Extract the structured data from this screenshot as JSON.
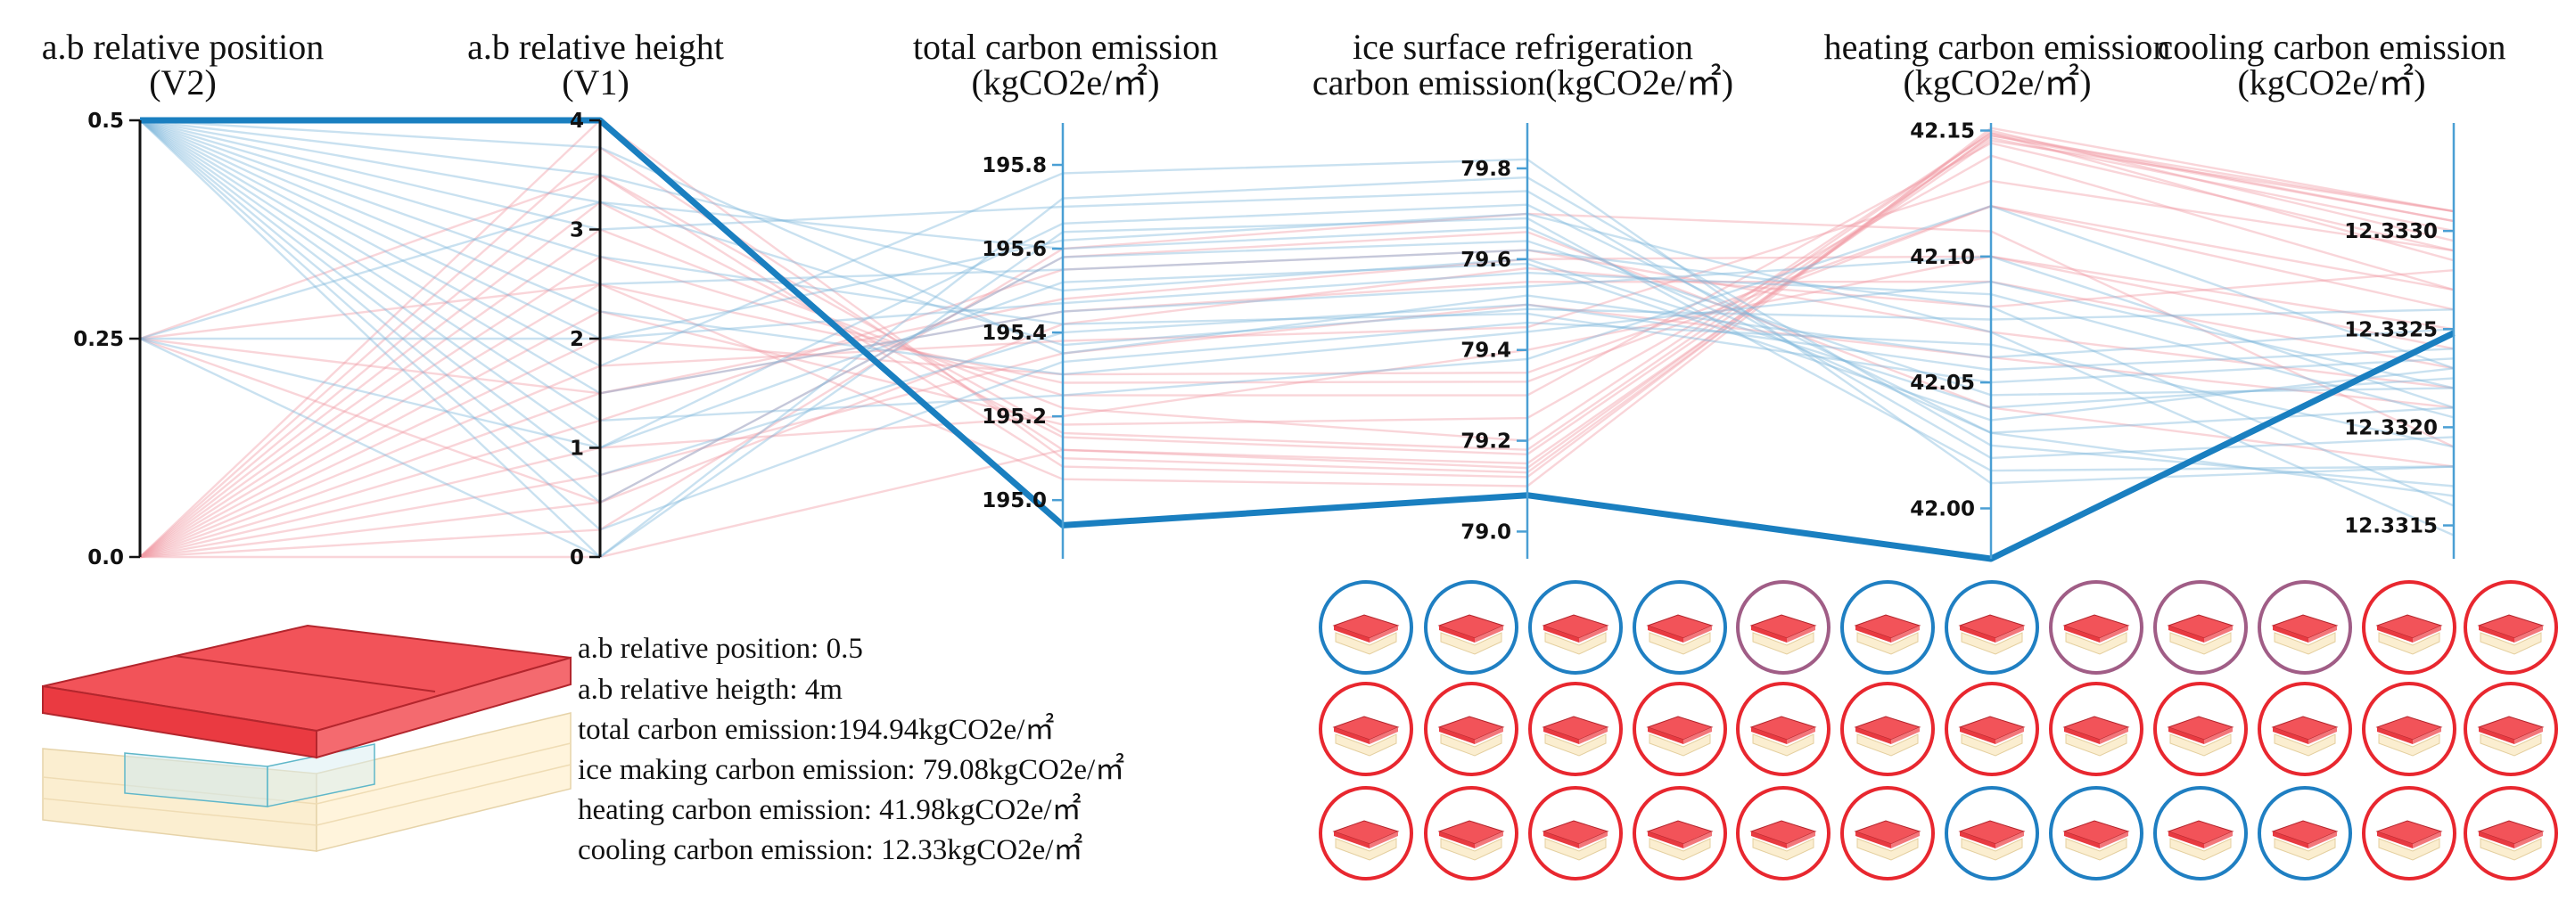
{
  "chart_data": {
    "type": "parallel_coordinates",
    "axes": [
      {
        "id": "v2",
        "title": [
          "a.b relative position",
          "(V2)"
        ],
        "range": [
          0,
          0.5
        ],
        "ticks": [
          "0.5",
          "0.25",
          "0.0"
        ],
        "tick_values": [
          0.5,
          0.25,
          0
        ]
      },
      {
        "id": "v1",
        "title": [
          "a.b relative height",
          "(V1)"
        ],
        "range": [
          0,
          4
        ],
        "ticks": [
          "4",
          "3",
          "2",
          "1",
          "0"
        ],
        "tick_values": [
          4,
          3,
          2,
          1,
          0
        ]
      },
      {
        "id": "total",
        "title": [
          "total carbon emission",
          "(kgCO2e/㎡)"
        ],
        "range": [
          194.86,
          195.9
        ],
        "ticks": [
          "195.8",
          "195.6",
          "195.4",
          "195.2",
          "195.0"
        ],
        "tick_values": [
          195.8,
          195.6,
          195.4,
          195.2,
          195.0
        ]
      },
      {
        "id": "ice",
        "title": [
          "ice surface refrigeration",
          "carbon emission(kgCO2e/㎡)"
        ],
        "range": [
          78.94,
          79.9
        ],
        "ticks": [
          "79.8",
          "79.6",
          "79.4",
          "79.2",
          "79.0"
        ],
        "tick_values": [
          79.8,
          79.6,
          79.4,
          79.2,
          79.0
        ]
      },
      {
        "id": "heating",
        "title": [
          "heating carbon emission",
          "(kgCO2e/㎡)"
        ],
        "range": [
          41.98,
          42.153
        ],
        "ticks": [
          "42.15",
          "42.10",
          "42.05",
          "42.00"
        ],
        "tick_values": [
          42.15,
          42.1,
          42.05,
          42.0
        ]
      },
      {
        "id": "cooling",
        "title": [
          "cooling carbon emission",
          "(kgCO2e/㎡)"
        ],
        "range": [
          12.33133,
          12.33355
        ],
        "ticks": [
          "12.3330",
          "12.3325",
          "12.3320",
          "12.3315"
        ],
        "tick_values": [
          12.333,
          12.3325,
          12.332,
          12.3315
        ]
      }
    ],
    "highlighted": {
      "v2": 0.5,
      "v1": 4,
      "total": 194.94,
      "ice": 79.08,
      "heating": 41.98,
      "cooling": 12.33248
    },
    "series": [
      {
        "name": "pink",
        "color": "#f19aa5",
        "values": [
          [
            0,
            4,
            195.1,
            79.13,
            42.148,
            12.33305
          ],
          [
            0,
            3.75,
            195.12,
            79.15,
            42.146,
            12.3331
          ],
          [
            0,
            3.5,
            195.08,
            79.12,
            42.15,
            12.33295
          ],
          [
            0,
            3.25,
            195.15,
            79.17,
            42.147,
            12.333
          ],
          [
            0,
            3,
            195.22,
            79.2,
            42.149,
            12.33285
          ],
          [
            0,
            2.75,
            195.25,
            79.3,
            42.145,
            12.3329
          ],
          [
            0,
            2.5,
            195.05,
            79.1,
            42.151,
            12.3331
          ],
          [
            0,
            2.25,
            195.18,
            79.25,
            42.14,
            12.3327
          ],
          [
            0,
            2,
            195.3,
            79.35,
            42.12,
            12.3326
          ],
          [
            0,
            1.75,
            195.38,
            79.45,
            42.13,
            12.3329
          ],
          [
            0,
            1.5,
            195.45,
            79.55,
            42.09,
            12.3323
          ],
          [
            0,
            1.25,
            195.55,
            79.62,
            42.07,
            12.3322
          ],
          [
            0,
            1,
            195.2,
            79.4,
            42.1,
            12.3324
          ],
          [
            0,
            0.75,
            195.35,
            79.5,
            42.06,
            12.3321
          ],
          [
            0,
            0.5,
            195.42,
            79.58,
            42.08,
            12.3328
          ],
          [
            0,
            0.25,
            195.6,
            79.7,
            42.11,
            12.3319
          ],
          [
            0,
            0,
            195.12,
            79.14,
            42.148,
            12.3331
          ],
          [
            0.25,
            3.5,
            195.16,
            79.18,
            42.149,
            12.33305
          ],
          [
            0.25,
            2.5,
            195.28,
            79.33,
            42.12,
            12.3327
          ],
          [
            0.25,
            1.5,
            195.48,
            79.6,
            42.1,
            12.3325
          ],
          [
            0.25,
            0.5,
            195.58,
            79.66,
            42.04,
            12.3318
          ]
        ]
      },
      {
        "name": "blue",
        "color": "#7fb8dc",
        "values": [
          [
            0.5,
            3.75,
            195.35,
            79.52,
            42.06,
            12.3325
          ],
          [
            0.5,
            3.5,
            195.5,
            79.6,
            42.04,
            12.33225
          ],
          [
            0.5,
            3.25,
            195.6,
            79.67,
            42.03,
            12.3321
          ],
          [
            0.5,
            3,
            195.7,
            79.75,
            42.02,
            12.33195
          ],
          [
            0.5,
            2.75,
            195.42,
            79.48,
            42.05,
            12.33235
          ],
          [
            0.5,
            2.5,
            195.55,
            79.62,
            42.08,
            12.3316
          ],
          [
            0.5,
            2.25,
            195.3,
            79.44,
            42.09,
            12.3322
          ],
          [
            0.5,
            2,
            195.62,
            79.7,
            42.07,
            12.33145
          ],
          [
            0.5,
            1.75,
            195.78,
            79.82,
            42.01,
            12.3318
          ],
          [
            0.5,
            1.5,
            195.45,
            79.54,
            42.1,
            12.3321
          ],
          [
            0.5,
            1.25,
            195.25,
            79.38,
            42.12,
            12.3323
          ],
          [
            0.5,
            1,
            195.66,
            79.72,
            42.03,
            12.33165
          ],
          [
            0.5,
            0.75,
            195.4,
            79.5,
            42.055,
            12.3324
          ],
          [
            0.5,
            0.5,
            195.58,
            79.64,
            42.045,
            12.3322
          ],
          [
            0.5,
            0.25,
            195.33,
            79.46,
            42.065,
            12.3319
          ],
          [
            0.5,
            0,
            195.72,
            79.78,
            42.025,
            12.3317
          ],
          [
            0.25,
            3.25,
            195.37,
            79.49,
            42.075,
            12.3326
          ],
          [
            0.25,
            2,
            195.47,
            79.57,
            42.085,
            12.33205
          ],
          [
            0.25,
            1,
            195.52,
            79.59,
            42.035,
            12.3323
          ],
          [
            0.25,
            0,
            195.64,
            79.69,
            42.015,
            12.3318
          ]
        ]
      }
    ]
  },
  "info": {
    "lines": [
      "a.b relative position: 0.5",
      "a.b relative heigth: 4m",
      "total carbon emission:194.94kgCO2e/㎡",
      "ice making carbon emission: 79.08kgCO2e/㎡",
      "heating carbon emission: 41.98kgCO2e/㎡",
      "cooling carbon emission: 12.33kgCO2e/㎡"
    ]
  },
  "thumbnails": {
    "rows": [
      [
        "blue",
        "blue",
        "blue",
        "blue",
        "purple",
        "blue",
        "blue",
        "purple",
        "purple",
        "purple",
        "red",
        "red"
      ],
      [
        "red",
        "red",
        "red",
        "red",
        "red",
        "red",
        "red",
        "red",
        "red",
        "red",
        "red",
        "red"
      ],
      [
        "red",
        "red",
        "red",
        "red",
        "red",
        "red",
        "blue",
        "blue",
        "blue",
        "blue",
        "red",
        "red"
      ]
    ],
    "colors": {
      "blue": "#1f7fc2",
      "purple": "#a05d86",
      "red": "#e8272f"
    }
  },
  "colors": {
    "highlight": "#1a7fc0",
    "axis_dark": "#111111",
    "axis_blue": "#4a9fd4",
    "roof": "#f25359",
    "wall": "#fbeed0"
  }
}
